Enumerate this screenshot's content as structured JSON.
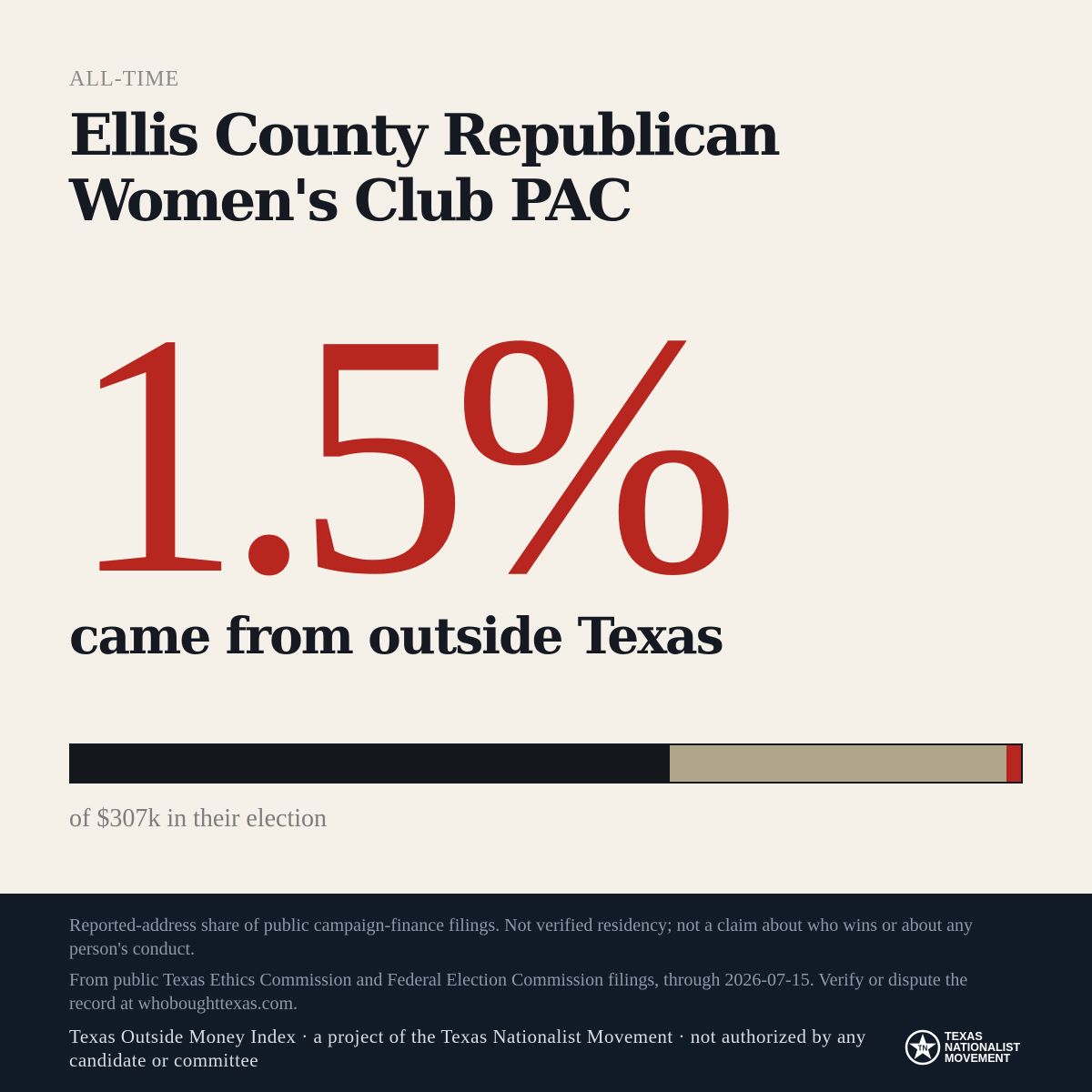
{
  "kicker": "ALL-TIME",
  "entity_name": "Ellis County Republican Women's Club PAC",
  "headline_value": "1.5%",
  "headline_caption": "came from outside Texas",
  "bar": {
    "unknown_share": 0.63,
    "texas_share": 0.355,
    "outside_share": 0.015,
    "colors": {
      "unknown": "#14171c",
      "texas": "#b0a48a",
      "outside": "#b7271f"
    }
  },
  "total_line": "of $307k in their election",
  "footer": {
    "disclaimer": "Reported-address share of public campaign-finance filings. Not verified residency; not a claim about who wins or about any person's conduct.",
    "source": "From public Texas Ethics Commission and Federal Election Commission filings, through 2026-07-15. Verify or dispute the record at whoboughttexas.com.",
    "credit": "Texas Outside Money Index · a project of the Texas Nationalist Movement · not authorized by any candidate or committee",
    "logo": {
      "line1": "TEXAS",
      "line2": "NATIONALIST",
      "line3": "MOVEMENT",
      "icon": "star-seal-icon"
    }
  },
  "colors": {
    "background": "#f5f0e8",
    "accent": "#b7271f",
    "ink": "#151a22",
    "footer_bg": "#111b28"
  }
}
